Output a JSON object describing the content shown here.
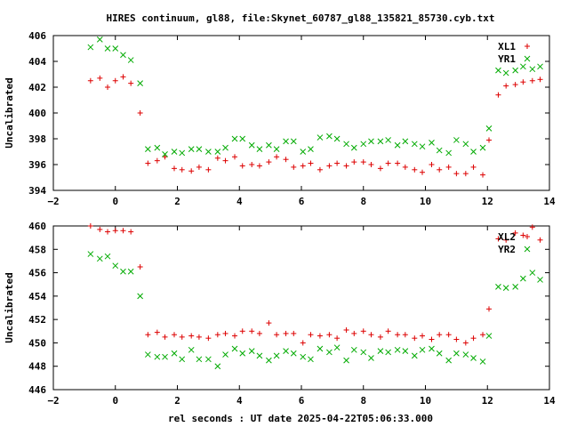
{
  "chart_data": {
    "title": "HIRES continuum, gl88, file:Skynet_60787_gl88_135821_85730.cyb.txt",
    "xlabel": "rel seconds : UT date 2025-04-22T05:06:33.000",
    "panels": [
      {
        "type": "scatter",
        "ylabel": "Uncalibrated",
        "xlim": [
          -2,
          14
        ],
        "ylim": [
          394,
          406
        ],
        "grid": false,
        "legend_position": "top-right",
        "xticks": [
          -2,
          0,
          2,
          4,
          6,
          8,
          10,
          12,
          14
        ],
        "yticks": [
          394,
          396,
          398,
          400,
          402,
          404,
          406
        ],
        "series": [
          {
            "name": "XL1",
            "marker": "plus",
            "color": "#dd0000",
            "x": [
              -0.8,
              -0.5,
              -0.25,
              0.0,
              0.25,
              0.5,
              0.8,
              1.05,
              1.35,
              1.6,
              1.9,
              2.15,
              2.45,
              2.7,
              3.0,
              3.3,
              3.55,
              3.85,
              4.1,
              4.4,
              4.65,
              4.95,
              5.2,
              5.5,
              5.75,
              6.05,
              6.3,
              6.6,
              6.9,
              7.15,
              7.45,
              7.7,
              8.0,
              8.25,
              8.55,
              8.8,
              9.1,
              9.35,
              9.65,
              9.9,
              10.2,
              10.45,
              10.75,
              11.0,
              11.3,
              11.55,
              11.85,
              12.05,
              12.35,
              12.6,
              12.9,
              13.15,
              13.45,
              13.7
            ],
            "y": [
              402.5,
              402.7,
              402.0,
              402.5,
              402.8,
              402.3,
              400.0,
              396.1,
              396.3,
              396.6,
              395.7,
              395.6,
              395.5,
              395.8,
              395.6,
              396.5,
              396.3,
              396.6,
              395.9,
              396.0,
              395.9,
              396.2,
              396.6,
              396.4,
              395.8,
              395.9,
              396.1,
              395.6,
              395.9,
              396.1,
              395.9,
              396.2,
              396.2,
              396.0,
              395.7,
              396.1,
              396.1,
              395.8,
              395.6,
              395.4,
              396.0,
              395.6,
              395.8,
              395.3,
              395.3,
              395.8,
              395.2,
              397.9,
              401.4,
              402.1,
              402.2,
              402.4,
              402.5,
              402.6
            ]
          },
          {
            "name": "YR1",
            "marker": "cross",
            "color": "#00aa00",
            "x": [
              -0.8,
              -0.5,
              -0.25,
              0.0,
              0.25,
              0.5,
              0.8,
              1.05,
              1.35,
              1.6,
              1.9,
              2.15,
              2.45,
              2.7,
              3.0,
              3.3,
              3.55,
              3.85,
              4.1,
              4.4,
              4.65,
              4.95,
              5.2,
              5.5,
              5.75,
              6.05,
              6.3,
              6.6,
              6.9,
              7.15,
              7.45,
              7.7,
              8.0,
              8.25,
              8.55,
              8.8,
              9.1,
              9.35,
              9.65,
              9.9,
              10.2,
              10.45,
              10.75,
              11.0,
              11.3,
              11.55,
              11.85,
              12.05,
              12.35,
              12.6,
              12.9,
              13.15,
              13.45,
              13.7
            ],
            "y": [
              405.1,
              405.7,
              405.0,
              405.0,
              404.5,
              404.1,
              402.3,
              397.2,
              397.3,
              396.8,
              397.0,
              396.9,
              397.2,
              397.2,
              397.0,
              397.0,
              397.3,
              398.0,
              398.0,
              397.5,
              397.2,
              397.5,
              397.2,
              397.8,
              397.8,
              397.0,
              397.2,
              398.1,
              398.2,
              398.0,
              397.6,
              397.3,
              397.6,
              397.8,
              397.8,
              397.9,
              397.5,
              397.8,
              397.6,
              397.4,
              397.7,
              397.1,
              396.9,
              397.9,
              397.6,
              397.0,
              397.3,
              398.8,
              403.3,
              403.1,
              403.3,
              403.6,
              403.4,
              403.6
            ]
          }
        ]
      },
      {
        "type": "scatter",
        "ylabel": "Uncalibrated",
        "xlim": [
          -2,
          14
        ],
        "ylim": [
          446,
          460
        ],
        "grid": false,
        "legend_position": "top-right",
        "xticks": [
          -2,
          0,
          2,
          4,
          6,
          8,
          10,
          12,
          14
        ],
        "yticks": [
          446,
          448,
          450,
          452,
          454,
          456,
          458,
          460
        ],
        "series": [
          {
            "name": "XL2",
            "marker": "plus",
            "color": "#dd0000",
            "x": [
              -0.8,
              -0.5,
              -0.25,
              0.0,
              0.25,
              0.5,
              0.8,
              1.05,
              1.35,
              1.6,
              1.9,
              2.15,
              2.45,
              2.7,
              3.0,
              3.3,
              3.55,
              3.85,
              4.1,
              4.4,
              4.65,
              4.95,
              5.2,
              5.5,
              5.75,
              6.05,
              6.3,
              6.6,
              6.9,
              7.15,
              7.45,
              7.7,
              8.0,
              8.25,
              8.55,
              8.8,
              9.1,
              9.35,
              9.65,
              9.9,
              10.2,
              10.45,
              10.75,
              11.0,
              11.3,
              11.55,
              11.85,
              12.05,
              12.35,
              12.6,
              12.9,
              13.15,
              13.45,
              13.7
            ],
            "y": [
              460.0,
              459.7,
              459.5,
              459.6,
              459.6,
              459.5,
              456.5,
              450.7,
              450.9,
              450.5,
              450.7,
              450.5,
              450.6,
              450.5,
              450.4,
              450.7,
              450.8,
              450.6,
              451.0,
              451.0,
              450.8,
              451.7,
              450.7,
              450.8,
              450.8,
              450.0,
              450.7,
              450.6,
              450.7,
              450.4,
              451.1,
              450.8,
              451.0,
              450.7,
              450.5,
              451.0,
              450.7,
              450.7,
              450.4,
              450.6,
              450.3,
              450.7,
              450.7,
              450.3,
              450.0,
              450.4,
              450.7,
              452.9,
              458.9,
              458.8,
              459.4,
              459.2,
              459.9,
              458.8
            ]
          },
          {
            "name": "YR2",
            "marker": "cross",
            "color": "#00aa00",
            "x": [
              -0.8,
              -0.5,
              -0.25,
              0.0,
              0.25,
              0.5,
              0.8,
              1.05,
              1.35,
              1.6,
              1.9,
              2.15,
              2.45,
              2.7,
              3.0,
              3.3,
              3.55,
              3.85,
              4.1,
              4.4,
              4.65,
              4.95,
              5.2,
              5.5,
              5.75,
              6.05,
              6.3,
              6.6,
              6.9,
              7.15,
              7.45,
              7.7,
              8.0,
              8.25,
              8.55,
              8.8,
              9.1,
              9.35,
              9.65,
              9.9,
              10.2,
              10.45,
              10.75,
              11.0,
              11.3,
              11.55,
              11.85,
              12.05,
              12.35,
              12.6,
              12.9,
              13.15,
              13.45,
              13.7
            ],
            "y": [
              457.6,
              457.2,
              457.4,
              456.6,
              456.1,
              456.1,
              454.0,
              449.0,
              448.8,
              448.8,
              449.1,
              448.6,
              449.4,
              448.6,
              448.6,
              448.0,
              449.0,
              449.5,
              449.1,
              449.3,
              448.9,
              448.5,
              448.9,
              449.3,
              449.1,
              448.8,
              448.6,
              449.5,
              449.2,
              449.6,
              448.5,
              449.4,
              449.2,
              448.7,
              449.3,
              449.2,
              449.4,
              449.3,
              448.9,
              449.4,
              449.5,
              449.1,
              448.5,
              449.1,
              449.0,
              448.7,
              448.4,
              450.6,
              454.8,
              454.7,
              454.8,
              455.5,
              456.0,
              455.4
            ]
          }
        ]
      }
    ]
  }
}
